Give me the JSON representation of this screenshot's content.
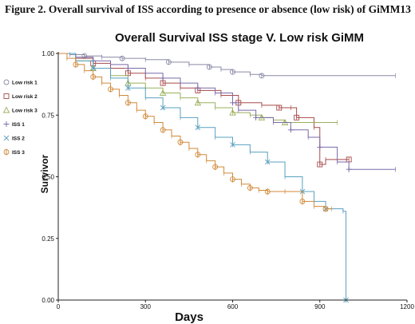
{
  "caption": "Figure 2. Overall survival of ISS according to presence or absence (low risk) of GiMM13",
  "chart_data": {
    "type": "line",
    "title": "Overall Survival ISS stage V. Low risk GiMM",
    "xlabel": "Days",
    "ylabel": "Survivor",
    "xlim": [
      0,
      1200
    ],
    "ylim": [
      0,
      1
    ],
    "x_ticks": [
      "0",
      "300",
      "600",
      "900",
      "1200"
    ],
    "y_ticks": [
      "0.00",
      "0.25",
      "0.50",
      "0.75",
      "1.00"
    ],
    "legend_position": "left",
    "series": [
      {
        "name": "Low risk 1",
        "color": "#8a8aa8",
        "marker": "circle",
        "x": [
          0,
          40,
          90,
          150,
          220,
          300,
          380,
          450,
          520,
          560,
          600,
          660,
          700,
          1160
        ],
        "y": [
          1.0,
          0.995,
          0.99,
          0.985,
          0.98,
          0.975,
          0.965,
          0.955,
          0.945,
          0.935,
          0.925,
          0.915,
          0.91,
          0.91
        ]
      },
      {
        "name": "Low risk 2",
        "color": "#a84a4a",
        "marker": "square",
        "x": [
          0,
          60,
          120,
          180,
          240,
          300,
          360,
          420,
          480,
          560,
          620,
          700,
          760,
          800,
          820,
          880,
          900,
          920,
          1000
        ],
        "y": [
          1.0,
          0.98,
          0.96,
          0.94,
          0.92,
          0.9,
          0.88,
          0.86,
          0.85,
          0.83,
          0.8,
          0.79,
          0.78,
          0.78,
          0.74,
          0.7,
          0.55,
          0.57,
          0.57
        ]
      },
      {
        "name": "Low risk 3",
        "color": "#99b05a",
        "marker": "triangle",
        "x": [
          0,
          60,
          120,
          180,
          240,
          300,
          360,
          420,
          480,
          540,
          600,
          660,
          700,
          740,
          780,
          960
        ],
        "y": [
          1.0,
          0.97,
          0.94,
          0.91,
          0.88,
          0.86,
          0.84,
          0.82,
          0.8,
          0.78,
          0.76,
          0.75,
          0.74,
          0.73,
          0.72,
          0.72
        ]
      },
      {
        "name": "ISS 1",
        "color": "#7a6aa8",
        "marker": "plus",
        "x": [
          0,
          60,
          120,
          180,
          240,
          300,
          360,
          420,
          480,
          540,
          600,
          620,
          680,
          740,
          800,
          860,
          900,
          960,
          1000,
          1160
        ],
        "y": [
          1.0,
          0.985,
          0.97,
          0.955,
          0.94,
          0.92,
          0.9,
          0.88,
          0.86,
          0.84,
          0.8,
          0.77,
          0.74,
          0.72,
          0.69,
          0.66,
          0.62,
          0.56,
          0.53,
          0.53
        ]
      },
      {
        "name": "ISS 2",
        "color": "#5aa0c0",
        "marker": "x",
        "x": [
          0,
          60,
          120,
          180,
          240,
          300,
          360,
          420,
          480,
          540,
          600,
          660,
          720,
          780,
          840,
          880,
          920,
          980,
          990
        ],
        "y": [
          1.0,
          0.97,
          0.94,
          0.9,
          0.86,
          0.82,
          0.78,
          0.74,
          0.7,
          0.66,
          0.63,
          0.6,
          0.56,
          0.5,
          0.44,
          0.4,
          0.37,
          0.36,
          0.0
        ]
      },
      {
        "name": "ISS 3",
        "color": "#d08a3a",
        "marker": "circle-line",
        "x": [
          0,
          30,
          60,
          90,
          120,
          150,
          180,
          210,
          240,
          270,
          300,
          330,
          360,
          390,
          420,
          450,
          480,
          510,
          540,
          570,
          600,
          630,
          660,
          690,
          720,
          780,
          840,
          880,
          920,
          940
        ],
        "y": [
          1.0,
          0.98,
          0.955,
          0.93,
          0.905,
          0.88,
          0.855,
          0.83,
          0.8,
          0.77,
          0.745,
          0.72,
          0.69,
          0.665,
          0.64,
          0.615,
          0.59,
          0.565,
          0.54,
          0.515,
          0.49,
          0.47,
          0.455,
          0.445,
          0.44,
          0.44,
          0.4,
          0.38,
          0.37,
          0.37
        ]
      }
    ]
  }
}
